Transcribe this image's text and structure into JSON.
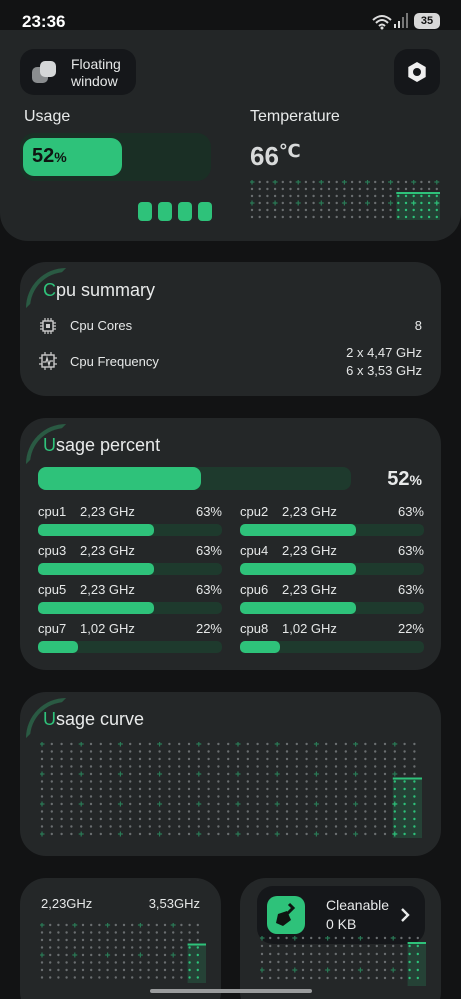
{
  "status_bar": {
    "time": "23:36",
    "battery": "35"
  },
  "header": {
    "floating_window_label_line1": "Floating",
    "floating_window_label_line2": "window"
  },
  "usage": {
    "title": "Usage",
    "percent": "52",
    "percent_unit": "%",
    "fraction": 0.52
  },
  "temperature": {
    "title": "Temperature",
    "value": "66",
    "unit": "℃"
  },
  "cpu_summary": {
    "title_first": "C",
    "title_rest": "pu summary",
    "cores_label": "Cpu Cores",
    "cores_value": "8",
    "freq_label": "Cpu Frequency",
    "freq_line1": "2 x 4,47 GHz",
    "freq_line2": "6 x 3,53 GHz"
  },
  "usage_percent": {
    "title_first": "U",
    "title_rest": "sage percent",
    "total_percent": "52",
    "total_unit": "%",
    "total_fraction": 0.52,
    "cpus": [
      {
        "name": "cpu1",
        "freq": "2,23 GHz",
        "pct": "63%",
        "fraction": 0.63
      },
      {
        "name": "cpu2",
        "freq": "2,23 GHz",
        "pct": "63%",
        "fraction": 0.63
      },
      {
        "name": "cpu3",
        "freq": "2,23 GHz",
        "pct": "63%",
        "fraction": 0.63
      },
      {
        "name": "cpu4",
        "freq": "2,23 GHz",
        "pct": "63%",
        "fraction": 0.63
      },
      {
        "name": "cpu5",
        "freq": "2,23 GHz",
        "pct": "63%",
        "fraction": 0.63
      },
      {
        "name": "cpu6",
        "freq": "2,23 GHz",
        "pct": "63%",
        "fraction": 0.63
      },
      {
        "name": "cpu7",
        "freq": "1,02 GHz",
        "pct": "22%",
        "fraction": 0.22
      },
      {
        "name": "cpu8",
        "freq": "1,02 GHz",
        "pct": "22%",
        "fraction": 0.22
      }
    ]
  },
  "usage_curve": {
    "title_first": "U",
    "title_rest": "sage curve"
  },
  "freq_card": {
    "left_value": "2,23GHz",
    "right_value": "3,53GHz"
  },
  "cleanable": {
    "label": "Cleanable",
    "value": "0 KB"
  },
  "colors": {
    "accent": "#2ec27a",
    "card": "#242728",
    "background": "#121314"
  },
  "icons": [
    "wifi-icon",
    "signal-icon",
    "battery-icon",
    "floating-window-icon",
    "settings-gear-icon",
    "chip-icon",
    "frequency-icon",
    "broom-icon",
    "chevron-right-icon"
  ]
}
